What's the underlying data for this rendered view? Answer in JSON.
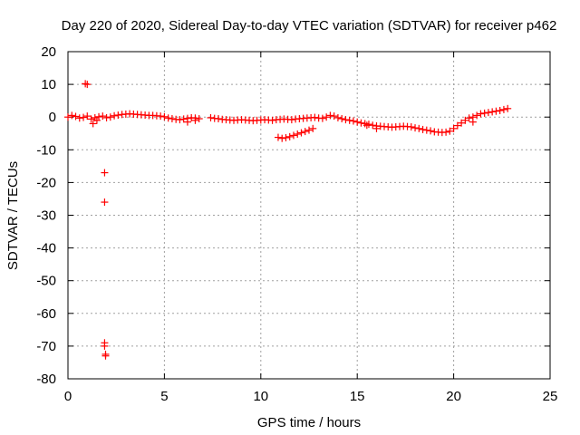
{
  "chart_data": {
    "type": "scatter",
    "title": "Day 220 of 2020, Sidereal Day-to-day VTEC variation (SDTVAR) for receiver p462",
    "xlabel": "GPS time / hours",
    "ylabel": "SDTVAR / TECUs",
    "xlim": [
      0,
      25
    ],
    "ylim": [
      -80,
      20
    ],
    "xticks": [
      0,
      5,
      10,
      15,
      20,
      25
    ],
    "yticks": [
      20,
      10,
      0,
      -10,
      -20,
      -30,
      -40,
      -50,
      -60,
      -70,
      -80
    ],
    "grid": true,
    "marker": "+",
    "color": "#ff0000",
    "series": [
      {
        "name": "SDTVAR",
        "x": [
          0.0,
          0.2,
          0.4,
          0.6,
          0.8,
          1.0,
          1.2,
          1.4,
          1.6,
          1.8,
          2.0,
          2.2,
          2.4,
          2.6,
          2.8,
          3.0,
          3.2,
          3.4,
          3.6,
          3.8,
          4.0,
          4.2,
          4.4,
          4.6,
          4.8,
          5.0,
          5.2,
          5.4,
          5.6,
          5.8,
          6.0,
          6.2,
          6.4,
          6.6,
          6.8,
          7.4,
          7.6,
          7.8,
          8.0,
          8.2,
          8.4,
          8.6,
          8.8,
          9.0,
          9.2,
          9.4,
          9.6,
          9.8,
          10.0,
          10.2,
          10.4,
          10.6,
          10.8,
          11.0,
          11.2,
          11.4,
          11.6,
          11.8,
          12.0,
          12.2,
          12.4,
          12.6,
          12.8,
          13.0,
          13.2,
          13.4,
          13.6,
          13.8,
          14.0,
          14.2,
          14.4,
          14.6,
          14.8,
          15.0,
          15.2,
          15.4,
          15.6,
          15.8,
          16.0,
          16.2,
          16.4,
          16.6,
          16.8,
          17.0,
          17.2,
          17.4,
          17.6,
          17.8,
          18.0,
          18.2,
          18.4,
          18.6,
          18.8,
          19.0,
          19.2,
          19.4,
          19.6,
          19.8,
          20.0,
          20.2,
          20.4,
          20.6,
          20.8,
          21.0,
          21.2,
          21.4,
          21.6,
          21.8,
          22.0,
          22.2,
          22.4,
          22.6,
          22.8,
          10.9,
          11.1,
          11.3,
          11.5,
          11.7,
          11.9,
          12.1,
          12.3,
          12.5,
          12.7,
          0.9,
          1.0,
          1.9,
          1.9,
          1.9,
          1.9,
          1.95,
          1.95,
          1.3,
          1.5,
          6.2,
          6.6,
          16.0,
          15.5,
          21.0
        ],
        "y": [
          0.0,
          0.5,
          0.2,
          -0.3,
          -0.1,
          0.3,
          -0.6,
          -0.2,
          0.1,
          0.3,
          -0.2,
          0.0,
          0.4,
          0.6,
          0.8,
          0.9,
          1.0,
          0.9,
          0.8,
          0.7,
          0.6,
          0.5,
          0.5,
          0.4,
          0.3,
          0.1,
          -0.3,
          -0.5,
          -0.7,
          -0.8,
          -0.6,
          -0.4,
          -0.2,
          -0.3,
          -0.5,
          -0.2,
          -0.4,
          -0.5,
          -0.7,
          -0.8,
          -0.9,
          -1.0,
          -0.9,
          -0.8,
          -0.9,
          -1.0,
          -1.1,
          -1.0,
          -0.9,
          -0.8,
          -0.9,
          -1.0,
          -0.8,
          -0.7,
          -0.6,
          -0.7,
          -0.8,
          -0.6,
          -0.5,
          -0.4,
          -0.3,
          -0.2,
          -0.1,
          -0.3,
          -0.4,
          0.0,
          0.5,
          0.3,
          -0.2,
          -0.5,
          -0.8,
          -1.0,
          -1.2,
          -1.5,
          -1.8,
          -2.0,
          -2.2,
          -2.5,
          -2.7,
          -2.8,
          -2.9,
          -3.0,
          -3.1,
          -3.0,
          -2.9,
          -2.8,
          -2.9,
          -3.0,
          -3.3,
          -3.5,
          -3.8,
          -4.0,
          -4.2,
          -4.5,
          -4.6,
          -4.7,
          -4.6,
          -4.3,
          -3.5,
          -2.6,
          -1.8,
          -1.0,
          -0.3,
          0.0,
          0.5,
          1.0,
          1.2,
          1.4,
          1.6,
          1.8,
          2.0,
          2.3,
          2.6,
          -6.2,
          -6.5,
          -6.3,
          -6.0,
          -5.6,
          -5.2,
          -4.8,
          -4.4,
          -4.0,
          -3.5,
          10.2,
          10.0,
          -17.0,
          -26.0,
          -69.0,
          -70.0,
          -72.5,
          -73.0,
          -2.0,
          -1.0,
          -1.5,
          -1.0,
          -3.5,
          -2.5,
          -1.5
        ]
      }
    ]
  }
}
